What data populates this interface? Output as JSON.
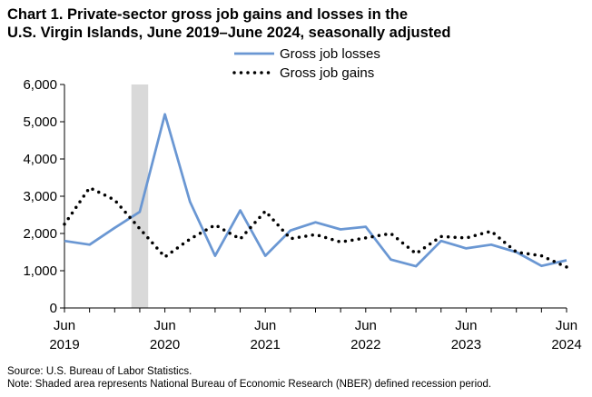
{
  "title_line1": "Chart 1. Private-sector gross job gains and losses in the",
  "title_line2": "U.S. Virgin Islands, June 2019–June 2024, seasonally adjusted",
  "footer": {
    "source": "Source: U.S. Bureau of Labor Statistics.",
    "note": "Note: Shaded area represents National Bureau of Economic Research (NBER) defined recession period."
  },
  "colors": {
    "losses": "#6a97d3",
    "gains": "#000000",
    "recession": "#d9d9d9",
    "axis": "#000000"
  },
  "chart_data": {
    "type": "line",
    "ylim": [
      0,
      6000
    ],
    "yticks": [
      0,
      1000,
      2000,
      3000,
      4000,
      5000,
      6000
    ],
    "ytick_labels": [
      "0",
      "1,000",
      "2,000",
      "3,000",
      "4,000",
      "5,000",
      "6,000"
    ],
    "xtick_labels": [
      {
        "month": "Jun",
        "year": "2019"
      },
      {
        "month": "Jun",
        "year": "2020"
      },
      {
        "month": "Jun",
        "year": "2021"
      },
      {
        "month": "Jun",
        "year": "2022"
      },
      {
        "month": "Jun",
        "year": "2023"
      },
      {
        "month": "Jun",
        "year": "2024"
      }
    ],
    "x": [
      "Jun 2019",
      "Sep 2019",
      "Dec 2019",
      "Mar 2020",
      "Jun 2020",
      "Sep 2020",
      "Dec 2020",
      "Mar 2021",
      "Jun 2021",
      "Sep 2021",
      "Dec 2021",
      "Mar 2022",
      "Jun 2022",
      "Sep 2022",
      "Dec 2022",
      "Mar 2023",
      "Jun 2023",
      "Sep 2023",
      "Dec 2023",
      "Mar 2024",
      "Jun 2024"
    ],
    "recession": {
      "start": "Feb 2020",
      "end": "Apr 2020"
    },
    "legend_position": "top",
    "series": [
      {
        "name": "Gross job losses",
        "style": "solid",
        "values": [
          1800,
          1700,
          2150,
          2580,
          5200,
          2850,
          1400,
          2620,
          1400,
          2080,
          2300,
          2110,
          2180,
          1300,
          1120,
          1800,
          1600,
          1700,
          1500,
          1130,
          1280
        ]
      },
      {
        "name": "Gross job gains",
        "style": "dotted",
        "values": [
          2250,
          3230,
          2900,
          2130,
          1370,
          1850,
          2230,
          1850,
          2600,
          1860,
          1970,
          1770,
          1880,
          2000,
          1460,
          1920,
          1880,
          2060,
          1500,
          1400,
          1100
        ]
      }
    ]
  }
}
